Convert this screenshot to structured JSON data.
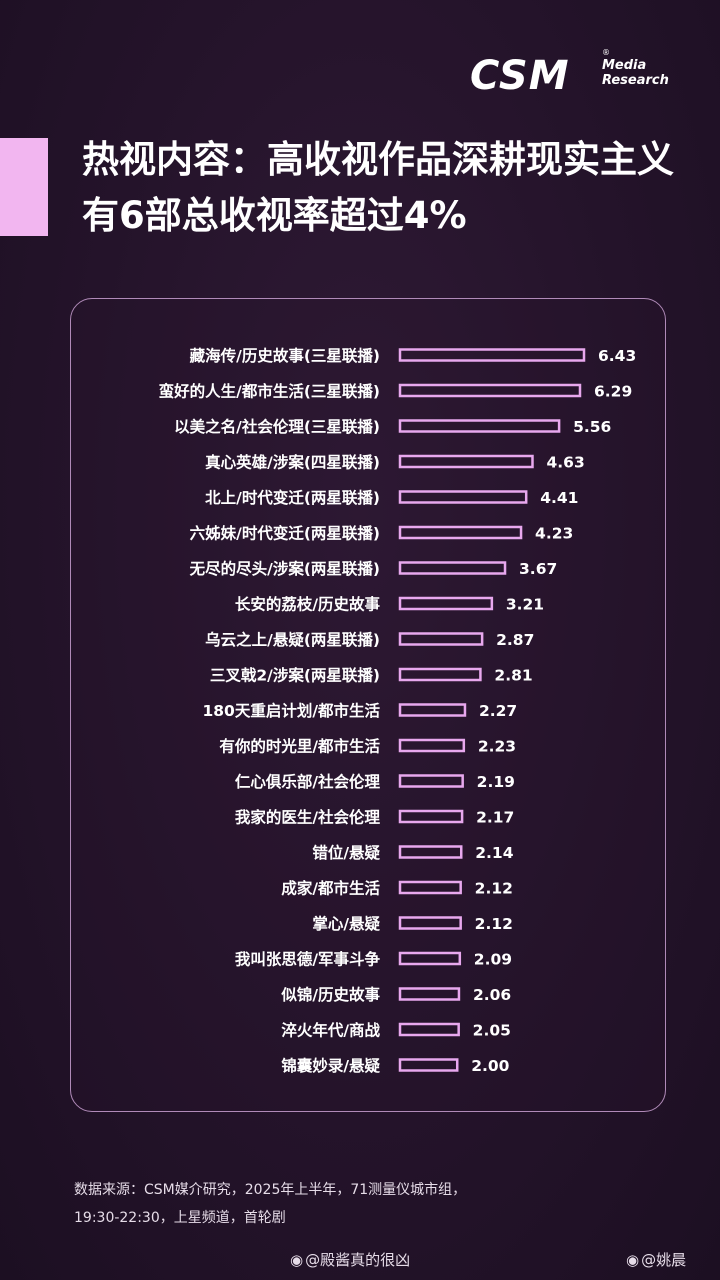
{
  "brand": {
    "logo_main": "CSM",
    "logo_sub_line1": "Media",
    "logo_sub_line2": "Research",
    "logo_reg": "®"
  },
  "title": {
    "line1": "热视内容：高收视作品深耕现实主义",
    "line2": "有6部总收视率超过4%"
  },
  "chart_data": {
    "type": "bar",
    "orientation": "horizontal",
    "categories": [
      "藏海传/历史故事(三星联播)",
      "蛮好的人生/都市生活(三星联播)",
      "以美之名/社会伦理(三星联播)",
      "真心英雄/涉案(四星联播)",
      "北上/时代变迁(两星联播)",
      "六姊妹/时代变迁(两星联播)",
      "无尽的尽头/涉案(两星联播)",
      "长安的荔枝/历史故事",
      "乌云之上/悬疑(两星联播)",
      "三叉戟2/涉案(两星联播)",
      "180天重启计划/都市生活",
      "有你的时光里/都市生活",
      "仁心俱乐部/社会伦理",
      "我家的医生/社会伦理",
      "错位/悬疑",
      "成家/都市生活",
      "掌心/悬疑",
      "我叫张思德/军事斗争",
      "似锦/历史故事",
      "淬火年代/商战",
      "锦囊妙录/悬疑"
    ],
    "values": [
      6.43,
      6.29,
      5.56,
      4.63,
      4.41,
      4.23,
      3.67,
      3.21,
      2.87,
      2.81,
      2.27,
      2.23,
      2.19,
      2.17,
      2.14,
      2.12,
      2.12,
      2.09,
      2.06,
      2.05,
      2.0
    ],
    "value_labels": [
      "6.43",
      "6.29",
      "5.56",
      "4.63",
      "4.41",
      "4.23",
      "3.67",
      "3.21",
      "2.87",
      "2.81",
      "2.27",
      "2.23",
      "2.19",
      "2.17",
      "2.14",
      "2.12",
      "2.12",
      "2.09",
      "2.06",
      "2.05",
      "2.00"
    ],
    "xlim": [
      0,
      6.43
    ],
    "grid": false,
    "bar_color": "#e8a8ee"
  },
  "footer": {
    "source_line1": "数据来源：CSM媒介研究，2025年上半年，71测量仪城市组，",
    "source_line2": "19:30-22:30，上星频道，首轮剧"
  },
  "watermarks": [
    {
      "text": "@殿酱真的很凶"
    },
    {
      "text": "@姚晨"
    }
  ]
}
